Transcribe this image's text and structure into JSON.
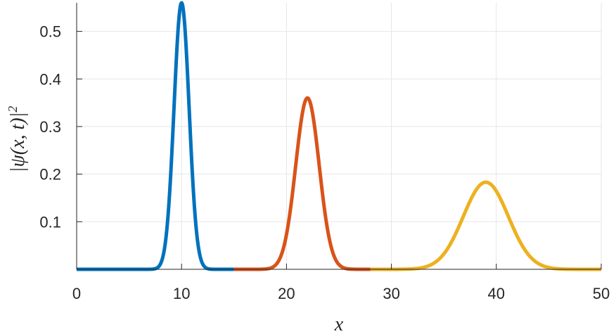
{
  "chart_data": {
    "type": "line",
    "title": "",
    "xlabel": "x",
    "ylabel": "|ψ(x,t)|²",
    "ylabel_parts": {
      "base": "|ψ(x, t)|",
      "sup": "2"
    },
    "xlim": [
      0,
      50
    ],
    "ylim": [
      0,
      0.56
    ],
    "xticks": [
      0,
      10,
      20,
      30,
      40,
      50
    ],
    "xtick_labels": [
      "0",
      "10",
      "20",
      "30",
      "40",
      "50"
    ],
    "yticks": [
      0.1,
      0.2,
      0.3,
      0.4,
      0.5
    ],
    "ytick_labels": [
      "0.1",
      "0.2",
      "0.3",
      "0.4",
      "0.5"
    ],
    "grid": true,
    "legend": "none",
    "series": [
      {
        "color": "#0072BD",
        "x_range": [
          0,
          15
        ],
        "center": 10,
        "peak": 0.56,
        "sigma": 0.72
      },
      {
        "color": "#D95319",
        "x_range": [
          15,
          28
        ],
        "center": 22,
        "peak": 0.36,
        "sigma": 1.12
      },
      {
        "color": "#EDB120",
        "x_range": [
          28,
          50
        ],
        "center": 39,
        "peak": 0.183,
        "sigma": 2.15
      }
    ]
  }
}
